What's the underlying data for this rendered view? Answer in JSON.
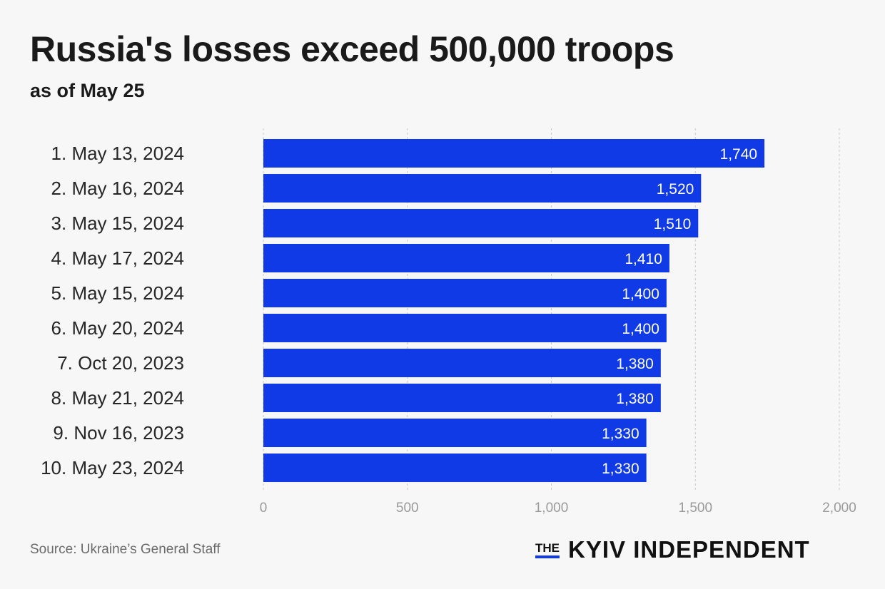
{
  "header": {
    "title": "Russia's losses exceed 500,000 troops",
    "subtitle": "as of May 25"
  },
  "footer": {
    "source": "Source: Ukraine’s General Staff",
    "logo_the": "THE",
    "logo_name": "KYIV INDEPENDENT"
  },
  "colors": {
    "bar": "#0f3ae6",
    "grid": "#c8c8c8",
    "background": "#f7f7f7"
  },
  "chart_data": {
    "type": "bar",
    "orientation": "horizontal",
    "title": "Russia's losses exceed 500,000 troops",
    "subtitle": "as of May 25",
    "categories": [
      "1. May 13, 2024",
      "2. May 16, 2024",
      "3. May 15, 2024",
      "4. May 17, 2024",
      "5. May 15, 2024",
      "6. May 20, 2024",
      "7. Oct 20, 2023",
      "8. May 21, 2024",
      "9. Nov 16, 2023",
      "10. May 23, 2024"
    ],
    "values": [
      1740,
      1520,
      1510,
      1410,
      1400,
      1400,
      1380,
      1380,
      1330,
      1330
    ],
    "value_labels": [
      "1,740",
      "1,520",
      "1,510",
      "1,410",
      "1,400",
      "1,400",
      "1,380",
      "1,380",
      "1,330",
      "1,330"
    ],
    "xlim": [
      0,
      2000
    ],
    "xticks": [
      0,
      500,
      1000,
      1500,
      2000
    ],
    "xtick_labels": [
      "0",
      "500",
      "1,000",
      "1,500",
      "2,000"
    ],
    "grid": "vertical dashed",
    "xlabel": "",
    "ylabel": ""
  }
}
